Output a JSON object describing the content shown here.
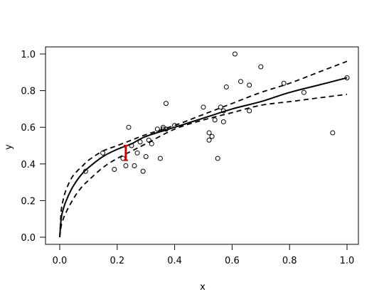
{
  "chart_data": {
    "type": "scatter",
    "title": "",
    "xlabel": "x",
    "ylabel": "y",
    "xlim": [
      0.0,
      1.0
    ],
    "ylim": [
      0.0,
      1.0
    ],
    "xticks": [
      0.0,
      0.2,
      0.4,
      0.6,
      0.8,
      1.0
    ],
    "yticks": [
      0.0,
      0.2,
      0.4,
      0.6,
      0.8,
      1.0
    ],
    "xtick_labels": [
      "0.0",
      "0.2",
      "0.4",
      "0.6",
      "0.8",
      "1.0"
    ],
    "ytick_labels": [
      "0.0",
      "0.2",
      "0.4",
      "0.6",
      "0.8",
      "1.0"
    ],
    "grid": false,
    "points": {
      "marker": "open-circle",
      "color": "#000000",
      "x": [
        0.09,
        0.15,
        0.19,
        0.22,
        0.23,
        0.24,
        0.25,
        0.26,
        0.27,
        0.28,
        0.29,
        0.3,
        0.31,
        0.32,
        0.34,
        0.35,
        0.36,
        0.36,
        0.37,
        0.37,
        0.4,
        0.5,
        0.52,
        0.52,
        0.53,
        0.54,
        0.55,
        0.56,
        0.57,
        0.57,
        0.58,
        0.61,
        0.63,
        0.66,
        0.66,
        0.7,
        0.78,
        0.85,
        0.95,
        1.0
      ],
      "y": [
        0.36,
        0.46,
        0.37,
        0.43,
        0.39,
        0.6,
        0.5,
        0.39,
        0.46,
        0.52,
        0.36,
        0.44,
        0.53,
        0.51,
        0.59,
        0.43,
        0.59,
        0.6,
        0.59,
        0.73,
        0.61,
        0.71,
        0.57,
        0.53,
        0.55,
        0.64,
        0.43,
        0.71,
        0.63,
        0.69,
        0.82,
        1.0,
        0.85,
        0.69,
        0.83,
        0.93,
        0.84,
        0.79,
        0.57,
        0.87
      ]
    },
    "series": [
      {
        "style": "solid",
        "color": "#000000",
        "x": [
          0.0,
          0.005,
          0.01,
          0.02,
          0.04,
          0.06,
          0.08,
          0.1,
          0.15,
          0.2,
          0.25,
          0.3,
          0.4,
          0.5,
          0.6,
          0.7,
          0.8,
          0.9,
          1.0
        ],
        "y": [
          0.0,
          0.1,
          0.14,
          0.19,
          0.26,
          0.31,
          0.35,
          0.38,
          0.44,
          0.48,
          0.51,
          0.55,
          0.6,
          0.65,
          0.7,
          0.74,
          0.79,
          0.83,
          0.87
        ]
      },
      {
        "style": "dashed",
        "color": "#000000",
        "x": [
          0.0,
          0.005,
          0.01,
          0.02,
          0.04,
          0.06,
          0.08,
          0.1,
          0.15,
          0.2,
          0.25,
          0.3,
          0.4,
          0.5,
          0.6,
          0.7,
          0.8,
          0.9,
          1.0
        ],
        "y": [
          0.0,
          0.14,
          0.19,
          0.25,
          0.32,
          0.36,
          0.39,
          0.42,
          0.47,
          0.5,
          0.53,
          0.56,
          0.61,
          0.67,
          0.73,
          0.79,
          0.84,
          0.9,
          0.96
        ]
      },
      {
        "style": "dashed",
        "color": "#000000",
        "x": [
          0.0,
          0.005,
          0.01,
          0.02,
          0.04,
          0.06,
          0.08,
          0.1,
          0.15,
          0.2,
          0.25,
          0.3,
          0.4,
          0.5,
          0.6,
          0.7,
          0.8,
          0.9,
          1.0
        ],
        "y": [
          0.0,
          0.06,
          0.09,
          0.13,
          0.19,
          0.24,
          0.28,
          0.31,
          0.38,
          0.43,
          0.47,
          0.51,
          0.59,
          0.64,
          0.68,
          0.72,
          0.74,
          0.76,
          0.78
        ]
      }
    ],
    "highlight": {
      "color": "#cc0000",
      "x": 0.23,
      "y_low": 0.42,
      "y_high": 0.5
    }
  }
}
